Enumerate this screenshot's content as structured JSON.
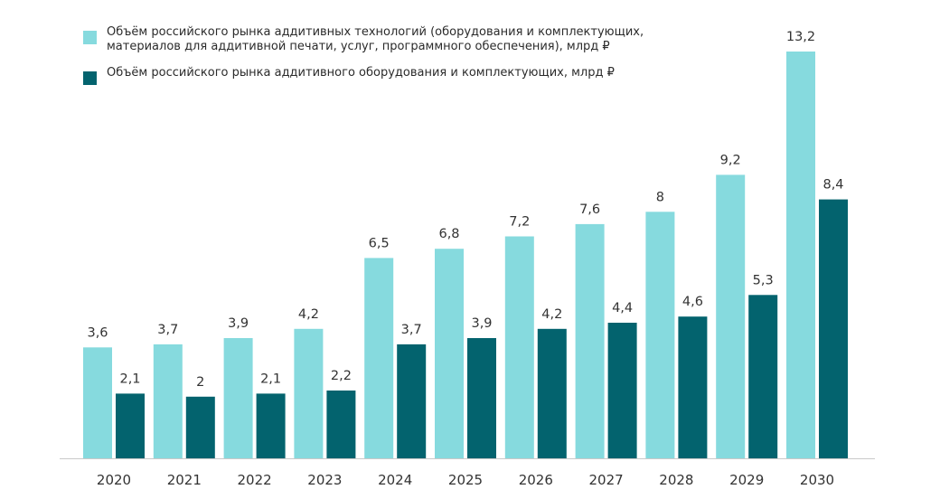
{
  "chart_data": {
    "type": "bar",
    "categories": [
      "2020",
      "2021",
      "2022",
      "2023",
      "2024",
      "2025",
      "2026",
      "2027",
      "2028",
      "2029",
      "2030"
    ],
    "series": [
      {
        "name": "Объём российского рынка аддитивных технологий (оборудования и комплектующих, материалов для аддитивной печати, услуг, программного обеспечения), млрд ₽",
        "color": "#86dade",
        "values": [
          3.6,
          3.7,
          3.9,
          4.2,
          6.5,
          6.8,
          7.2,
          7.6,
          8,
          9.2,
          13.2
        ],
        "labels": [
          "3,6",
          "3,7",
          "3,9",
          "4,2",
          "6,5",
          "6,8",
          "7,2",
          "7,6",
          "8",
          "9,2",
          "13,2"
        ]
      },
      {
        "name": "Объём российского рынка аддитивного оборудования и комплектующих, млрд ₽",
        "color": "#03636e",
        "values": [
          2.1,
          2,
          2.1,
          2.2,
          3.7,
          3.9,
          4.2,
          4.4,
          4.6,
          5.3,
          8.4
        ],
        "labels": [
          "2,1",
          "2",
          "2,1",
          "2,2",
          "3,7",
          "3,9",
          "4,2",
          "4,4",
          "4,6",
          "5,3",
          "8,4"
        ]
      }
    ],
    "ylim": [
      0,
      13.2
    ],
    "grid": false,
    "legend_position": "top-left"
  }
}
